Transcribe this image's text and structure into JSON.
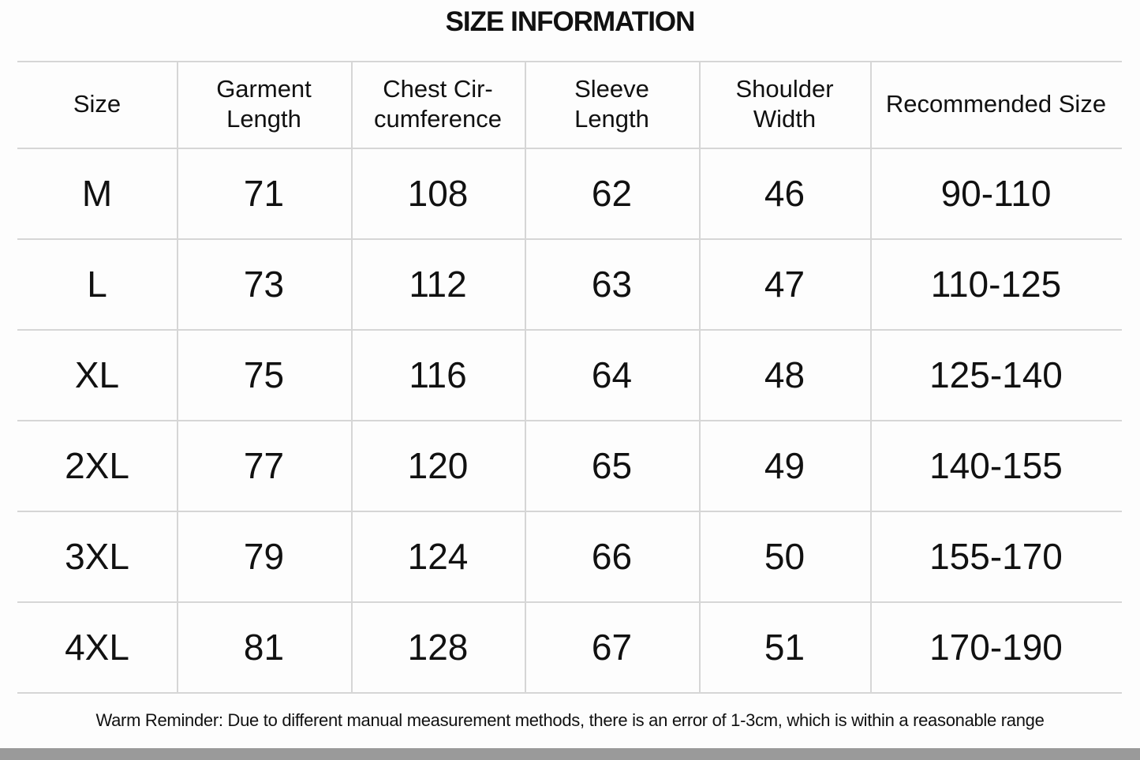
{
  "header": {
    "title": "SIZE INFORMATION"
  },
  "table": {
    "columns": [
      [
        "Size"
      ],
      [
        "Garment",
        "Length"
      ],
      [
        "Chest Cir-",
        "cumference"
      ],
      [
        "Sleeve",
        "Length"
      ],
      [
        "Shoulder",
        "Width"
      ],
      [
        "Recommended Size"
      ]
    ],
    "rows": [
      [
        "M",
        "71",
        "108",
        "62",
        "46",
        "90-110"
      ],
      [
        "L",
        "73",
        "112",
        "63",
        "47",
        "110-125"
      ],
      [
        "XL",
        "75",
        "116",
        "64",
        "48",
        "125-140"
      ],
      [
        "2XL",
        "77",
        "120",
        "65",
        "49",
        "140-155"
      ],
      [
        "3XL",
        "79",
        "124",
        "66",
        "50",
        "155-170"
      ],
      [
        "4XL",
        "81",
        "128",
        "67",
        "51",
        "170-190"
      ]
    ]
  },
  "note": "Warm Reminder: Due to different manual measurement methods, there is an error of 1-3cm, which is within a reasonable range"
}
